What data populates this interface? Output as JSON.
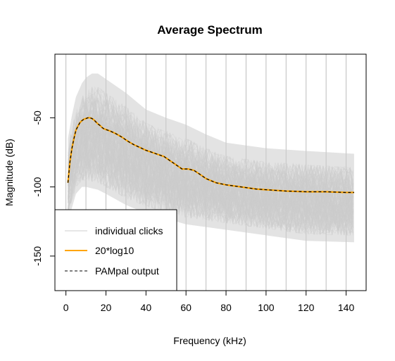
{
  "chart_data": {
    "type": "line",
    "title": "Average Spectrum",
    "xlabel": "Frequency (kHz)",
    "ylabel": "Magnitude (dB)",
    "xlim": [
      -5.5,
      150
    ],
    "ylim": [
      -175,
      -4
    ],
    "x_ticks": [
      0,
      20,
      40,
      60,
      80,
      100,
      120,
      140
    ],
    "y_ticks": [
      -50,
      -100,
      -150
    ],
    "vertical_grid": [
      0,
      10,
      20,
      30,
      40,
      50,
      60,
      70,
      80,
      90,
      100,
      110,
      120,
      130,
      140
    ],
    "grid": "vertical",
    "legend_position": "bottom-left",
    "series": [
      {
        "name": "individual clicks",
        "style": "envelope",
        "color": "#cccccc",
        "x": [
          1,
          3,
          5,
          8,
          10,
          13,
          16,
          20,
          30,
          40,
          50,
          60,
          70,
          80,
          100,
          120,
          144
        ],
        "upper": [
          -75,
          -58,
          -45,
          -35,
          -31,
          -28,
          -28,
          -32,
          -42,
          -54,
          -60,
          -65,
          -72,
          -78,
          -82,
          -84,
          -86
        ],
        "lower": [
          -120,
          -110,
          -100,
          -95,
          -95,
          -96,
          -97,
          -100,
          -108,
          -114,
          -118,
          -122,
          -124,
          -126,
          -130,
          -134,
          -135
        ]
      },
      {
        "name": "20*log10",
        "color": "#ffa500",
        "x": [
          1,
          2,
          3,
          4,
          5,
          6,
          7,
          8,
          9,
          10,
          11,
          12,
          13,
          14,
          15,
          16,
          17,
          18,
          19,
          20,
          22,
          25,
          28,
          31,
          34,
          37,
          40,
          43,
          46,
          49,
          52,
          55,
          58,
          61,
          64,
          67,
          70,
          75,
          80,
          85,
          90,
          95,
          100,
          110,
          120,
          130,
          140,
          144
        ],
        "y": [
          -97,
          -82,
          -72,
          -65,
          -59,
          -56,
          -53.5,
          -52,
          -51,
          -50.5,
          -50,
          -50,
          -50.5,
          -51.5,
          -53,
          -54.5,
          -55.5,
          -57,
          -58,
          -58.5,
          -59.5,
          -61.5,
          -64,
          -67,
          -69.5,
          -71.5,
          -73.5,
          -75,
          -76.5,
          -78,
          -81,
          -84,
          -87,
          -87,
          -88,
          -91,
          -94,
          -97,
          -98.5,
          -99.5,
          -100.5,
          -101.5,
          -102,
          -103,
          -103.5,
          -103.5,
          -104,
          -104
        ]
      },
      {
        "name": "PAMpal output",
        "color": "#000000",
        "dash": "dashed",
        "x": [
          1,
          2,
          3,
          4,
          5,
          6,
          7,
          8,
          9,
          10,
          11,
          12,
          13,
          14,
          15,
          16,
          17,
          18,
          19,
          20,
          22,
          25,
          28,
          31,
          34,
          37,
          40,
          43,
          46,
          49,
          52,
          55,
          58,
          61,
          64,
          67,
          70,
          75,
          80,
          85,
          90,
          95,
          100,
          110,
          120,
          130,
          140,
          144
        ],
        "y": [
          -97,
          -82,
          -72,
          -65,
          -59,
          -56,
          -53.5,
          -52,
          -51,
          -50.5,
          -50,
          -50,
          -50.5,
          -51.5,
          -53,
          -54.5,
          -55.5,
          -57,
          -58,
          -58.5,
          -59.5,
          -61.5,
          -64,
          -67,
          -69.5,
          -71.5,
          -73.5,
          -75,
          -76.5,
          -78,
          -81,
          -84,
          -87,
          -87,
          -88,
          -91,
          -94,
          -97,
          -98.5,
          -99.5,
          -100.5,
          -101.5,
          -102,
          -103,
          -103.5,
          -103.5,
          -104,
          -104
        ]
      }
    ]
  }
}
